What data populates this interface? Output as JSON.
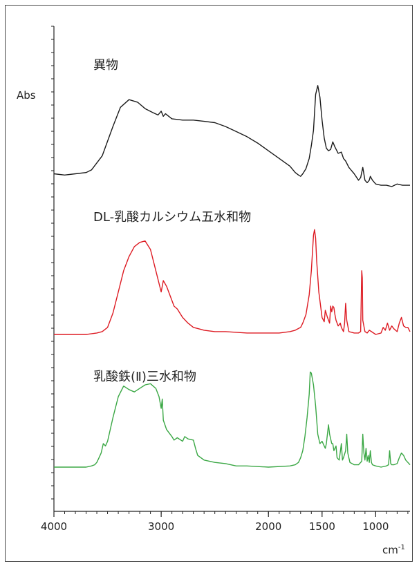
{
  "chart_data": {
    "type": "line",
    "ylabel": "Abs",
    "xunit": "cm",
    "xunit_exponent": "-1",
    "xlim": [
      4000,
      680
    ],
    "xticks": [
      4000,
      3000,
      2000,
      1500,
      1000
    ],
    "xtick_labels": [
      "4000",
      "3000",
      "2000",
      "1500",
      "1000"
    ],
    "series": [
      {
        "name": "異物",
        "color": "#1a1a1a",
        "x": [
          4000,
          3900,
          3800,
          3700,
          3650,
          3550,
          3450,
          3380,
          3300,
          3220,
          3150,
          3080,
          3030,
          3000,
          2980,
          2960,
          2900,
          2800,
          2700,
          2600,
          2500,
          2400,
          2300,
          2200,
          2100,
          2000,
          1900,
          1800,
          1750,
          1720,
          1700,
          1680,
          1650,
          1620,
          1600,
          1580,
          1560,
          1540,
          1520,
          1500,
          1480,
          1460,
          1440,
          1420,
          1400,
          1380,
          1350,
          1320,
          1300,
          1280,
          1250,
          1200,
          1160,
          1140,
          1120,
          1100,
          1080,
          1060,
          1050,
          1030,
          1000,
          950,
          900,
          850,
          800,
          750,
          700,
          680
        ],
        "values": [
          0.1,
          0.09,
          0.1,
          0.11,
          0.13,
          0.24,
          0.47,
          0.62,
          0.68,
          0.66,
          0.61,
          0.58,
          0.56,
          0.59,
          0.55,
          0.57,
          0.53,
          0.52,
          0.52,
          0.51,
          0.5,
          0.47,
          0.43,
          0.39,
          0.34,
          0.28,
          0.22,
          0.16,
          0.11,
          0.09,
          0.08,
          0.1,
          0.14,
          0.22,
          0.32,
          0.44,
          0.72,
          0.79,
          0.7,
          0.52,
          0.38,
          0.3,
          0.28,
          0.29,
          0.35,
          0.31,
          0.26,
          0.27,
          0.22,
          0.2,
          0.15,
          0.1,
          0.05,
          0.07,
          0.15,
          0.05,
          0.03,
          0.05,
          0.08,
          0.05,
          0.02,
          0.01,
          0.01,
          0.0,
          0.02,
          0.01,
          0.01,
          0.01
        ]
      },
      {
        "name": "DL-乳酸カルシウム五水和物",
        "color": "#dd1a22",
        "x": [
          4000,
          3800,
          3700,
          3600,
          3550,
          3500,
          3450,
          3400,
          3350,
          3300,
          3250,
          3200,
          3150,
          3100,
          3050,
          3000,
          2980,
          2950,
          2900,
          2880,
          2850,
          2800,
          2750,
          2700,
          2650,
          2600,
          2500,
          2400,
          2200,
          2000,
          1900,
          1800,
          1750,
          1700,
          1680,
          1650,
          1620,
          1600,
          1580,
          1570,
          1560,
          1550,
          1530,
          1500,
          1480,
          1470,
          1450,
          1430,
          1420,
          1410,
          1400,
          1390,
          1380,
          1370,
          1350,
          1330,
          1320,
          1300,
          1290,
          1280,
          1270,
          1250,
          1200,
          1160,
          1140,
          1130,
          1125,
          1120,
          1100,
          1080,
          1060,
          1040,
          1000,
          950,
          930,
          910,
          890,
          870,
          850,
          830,
          800,
          780,
          760,
          740,
          720,
          700,
          680
        ],
        "values": [
          0.0,
          0.0,
          0.0,
          0.01,
          0.02,
          0.05,
          0.15,
          0.3,
          0.45,
          0.55,
          0.62,
          0.65,
          0.66,
          0.6,
          0.45,
          0.3,
          0.38,
          0.34,
          0.24,
          0.2,
          0.18,
          0.12,
          0.08,
          0.05,
          0.04,
          0.03,
          0.02,
          0.02,
          0.01,
          0.01,
          0.01,
          0.02,
          0.03,
          0.05,
          0.08,
          0.14,
          0.28,
          0.45,
          0.7,
          0.74,
          0.68,
          0.52,
          0.3,
          0.12,
          0.09,
          0.17,
          0.12,
          0.08,
          0.2,
          0.16,
          0.2,
          0.19,
          0.14,
          0.1,
          0.06,
          0.08,
          0.05,
          0.02,
          0.08,
          0.22,
          0.1,
          0.02,
          0.01,
          0.01,
          0.02,
          0.45,
          0.4,
          0.1,
          0.02,
          0.01,
          0.03,
          0.02,
          0.0,
          0.01,
          0.05,
          0.03,
          0.08,
          0.03,
          0.06,
          0.04,
          0.02,
          0.08,
          0.12,
          0.06,
          0.05,
          0.05,
          0.02
        ]
      },
      {
        "name": "乳酸鉄(Ⅱ)三水和物",
        "color": "#3aa744",
        "x": [
          4000,
          3800,
          3700,
          3650,
          3620,
          3600,
          3580,
          3560,
          3540,
          3520,
          3500,
          3450,
          3400,
          3350,
          3300,
          3250,
          3200,
          3150,
          3100,
          3050,
          3020,
          3000,
          2990,
          2980,
          2950,
          2900,
          2880,
          2850,
          2800,
          2780,
          2750,
          2700,
          2680,
          2660,
          2600,
          2500,
          2400,
          2300,
          2200,
          2000,
          1800,
          1750,
          1720,
          1700,
          1680,
          1660,
          1640,
          1620,
          1610,
          1600,
          1580,
          1560,
          1540,
          1520,
          1500,
          1480,
          1470,
          1460,
          1440,
          1430,
          1410,
          1400,
          1390,
          1370,
          1360,
          1340,
          1320,
          1310,
          1300,
          1280,
          1270,
          1260,
          1240,
          1200,
          1160,
          1130,
          1120,
          1110,
          1100,
          1090,
          1080,
          1070,
          1060,
          1050,
          1040,
          1030,
          1000,
          950,
          900,
          880,
          870,
          860,
          850,
          830,
          800,
          780,
          760,
          740,
          720,
          700,
          680
        ],
        "values": [
          0.0,
          0.0,
          0.0,
          0.01,
          0.02,
          0.04,
          0.08,
          0.12,
          0.2,
          0.18,
          0.22,
          0.42,
          0.6,
          0.69,
          0.66,
          0.64,
          0.67,
          0.7,
          0.71,
          0.67,
          0.6,
          0.5,
          0.58,
          0.4,
          0.32,
          0.26,
          0.23,
          0.25,
          0.22,
          0.26,
          0.24,
          0.23,
          0.16,
          0.1,
          0.06,
          0.04,
          0.03,
          0.01,
          0.01,
          0.0,
          0.01,
          0.02,
          0.04,
          0.08,
          0.14,
          0.26,
          0.42,
          0.62,
          0.81,
          0.8,
          0.7,
          0.52,
          0.28,
          0.2,
          0.22,
          0.18,
          0.16,
          0.2,
          0.36,
          0.28,
          0.2,
          0.2,
          0.14,
          0.18,
          0.08,
          0.06,
          0.2,
          0.06,
          0.08,
          0.14,
          0.28,
          0.12,
          0.04,
          0.02,
          0.02,
          0.05,
          0.28,
          0.12,
          0.06,
          0.16,
          0.05,
          0.1,
          0.04,
          0.14,
          0.04,
          0.02,
          0.01,
          0.0,
          0.01,
          0.02,
          0.14,
          0.03,
          0.02,
          0.02,
          0.03,
          0.08,
          0.12,
          0.1,
          0.06,
          0.04,
          0.02
        ]
      }
    ]
  }
}
